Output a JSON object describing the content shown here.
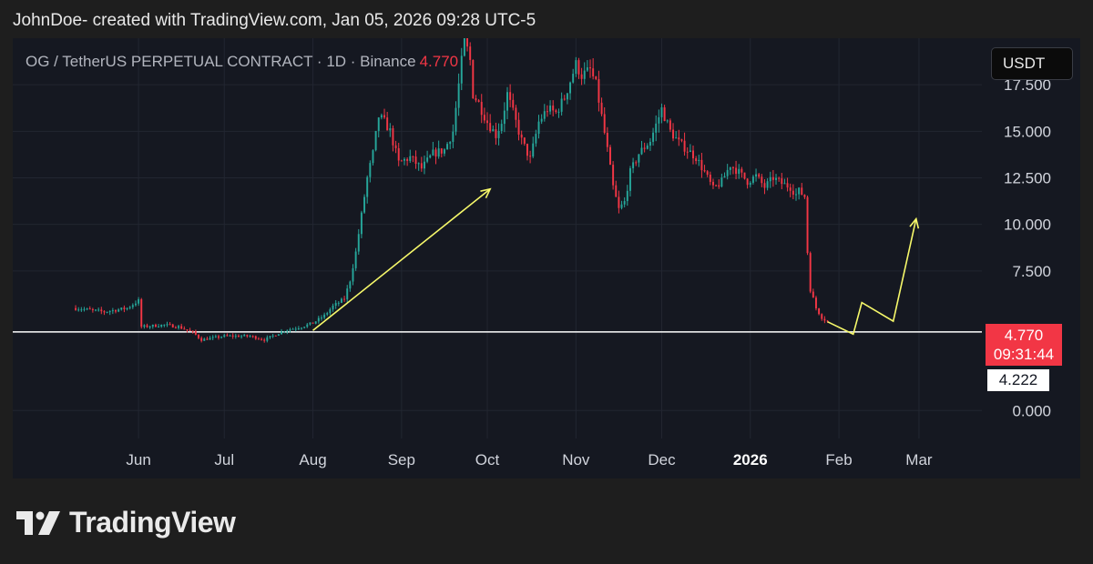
{
  "header": {
    "text": "JohnDoe- created with TradingView.com, Jan 05, 2026 09:28 UTC-5"
  },
  "symbol": {
    "title": "OG / TetherUS PERPETUAL CONTRACT · 1D · Binance",
    "last_price": "4.770"
  },
  "currency_button": "USDT",
  "price_tag": {
    "price": "4.770",
    "countdown": "09:31:44"
  },
  "level_tag": "4.222",
  "footer": {
    "brand": "TradingView"
  },
  "colors": {
    "up": "#26a69a",
    "down": "#f23645",
    "annotation": "#f6f86a",
    "level_line": "#ffffff"
  },
  "chart_data": {
    "type": "candlestick",
    "ylim": [
      -1.5,
      20.0
    ],
    "y_ticks": [
      {
        "value": 17.5,
        "label": "17.500"
      },
      {
        "value": 15.0,
        "label": "15.000"
      },
      {
        "value": 12.5,
        "label": "12.500"
      },
      {
        "value": 10.0,
        "label": "10.000"
      },
      {
        "value": 7.5,
        "label": "7.500"
      },
      {
        "value": 0.0,
        "label": "0.000"
      }
    ],
    "x_ticks": [
      {
        "date": "2025-06-01",
        "label": "Jun",
        "bold": false
      },
      {
        "date": "2025-07-01",
        "label": "Jul",
        "bold": false
      },
      {
        "date": "2025-08-01",
        "label": "Aug",
        "bold": false
      },
      {
        "date": "2025-09-01",
        "label": "Sep",
        "bold": false
      },
      {
        "date": "2025-10-01",
        "label": "Oct",
        "bold": false
      },
      {
        "date": "2025-11-01",
        "label": "Nov",
        "bold": false
      },
      {
        "date": "2025-12-01",
        "label": "Dec",
        "bold": false
      },
      {
        "date": "2026-01-01",
        "label": "2026",
        "bold": true
      },
      {
        "date": "2026-02-01",
        "label": "Feb",
        "bold": false
      },
      {
        "date": "2026-03-01",
        "label": "Mar",
        "bold": false
      }
    ],
    "x_domain": [
      "2025-04-18",
      "2026-03-23"
    ],
    "horizontal_level": 4.222,
    "price_path": [
      [
        "2025-05-10",
        5.5
      ],
      [
        "2025-05-20",
        5.3
      ],
      [
        "2025-05-28",
        5.5
      ],
      [
        "2025-06-01",
        5.9
      ],
      [
        "2025-06-02",
        4.5
      ],
      [
        "2025-06-10",
        4.6
      ],
      [
        "2025-06-15",
        4.5
      ],
      [
        "2025-06-20",
        4.2
      ],
      [
        "2025-06-23",
        3.8
      ],
      [
        "2025-07-01",
        4.0
      ],
      [
        "2025-07-10",
        4.0
      ],
      [
        "2025-07-15",
        3.8
      ],
      [
        "2025-07-22",
        4.3
      ],
      [
        "2025-07-28",
        4.5
      ],
      [
        "2025-08-01",
        4.7
      ],
      [
        "2025-08-05",
        5.1
      ],
      [
        "2025-08-08",
        5.6
      ],
      [
        "2025-08-12",
        6.0
      ],
      [
        "2025-08-14",
        7.0
      ],
      [
        "2025-08-16",
        8.5
      ],
      [
        "2025-08-18",
        10.5
      ],
      [
        "2025-08-20",
        12.5
      ],
      [
        "2025-08-22",
        13.8
      ],
      [
        "2025-08-24",
        15.8
      ],
      [
        "2025-08-26",
        15.5
      ],
      [
        "2025-08-28",
        15.0
      ],
      [
        "2025-08-31",
        13.3
      ],
      [
        "2025-09-04",
        13.6
      ],
      [
        "2025-09-08",
        13.0
      ],
      [
        "2025-09-12",
        13.8
      ],
      [
        "2025-09-16",
        14.0
      ],
      [
        "2025-09-19",
        15.0
      ],
      [
        "2025-09-21",
        17.5
      ],
      [
        "2025-09-23",
        20.0
      ],
      [
        "2025-09-25",
        18.8
      ],
      [
        "2025-09-26",
        17.0
      ],
      [
        "2025-09-28",
        16.5
      ],
      [
        "2025-10-01",
        15.5
      ],
      [
        "2025-10-04",
        14.8
      ],
      [
        "2025-10-06",
        15.5
      ],
      [
        "2025-10-08",
        17.0
      ],
      [
        "2025-10-10",
        16.0
      ],
      [
        "2025-10-13",
        14.5
      ],
      [
        "2025-10-16",
        13.5
      ],
      [
        "2025-10-19",
        15.5
      ],
      [
        "2025-10-22",
        16.2
      ],
      [
        "2025-10-25",
        16.0
      ],
      [
        "2025-10-28",
        16.8
      ],
      [
        "2025-11-01",
        18.6
      ],
      [
        "2025-11-03",
        18.0
      ],
      [
        "2025-11-06",
        18.3
      ],
      [
        "2025-11-08",
        17.5
      ],
      [
        "2025-11-10",
        15.8
      ],
      [
        "2025-11-12",
        14.0
      ],
      [
        "2025-11-14",
        12.0
      ],
      [
        "2025-11-16",
        10.8
      ],
      [
        "2025-11-18",
        11.2
      ],
      [
        "2025-11-20",
        12.8
      ],
      [
        "2025-11-23",
        13.8
      ],
      [
        "2025-11-27",
        14.5
      ],
      [
        "2025-12-01",
        16.2
      ],
      [
        "2025-12-04",
        15.0
      ],
      [
        "2025-12-07",
        14.4
      ],
      [
        "2025-12-10",
        14.0
      ],
      [
        "2025-12-13",
        13.6
      ],
      [
        "2025-12-16",
        12.8
      ],
      [
        "2025-12-19",
        11.9
      ],
      [
        "2025-12-22",
        12.3
      ],
      [
        "2025-12-25",
        13.2
      ],
      [
        "2025-12-28",
        12.8
      ],
      [
        "2025-12-31",
        12.3
      ],
      [
        "2026-01-03",
        12.6
      ],
      [
        "2026-01-06",
        12.0
      ],
      [
        "2026-01-09",
        12.5
      ],
      [
        "2026-01-12",
        12.2
      ],
      [
        "2026-01-15",
        12.0
      ],
      [
        "2026-01-17",
        11.6
      ],
      [
        "2026-01-18",
        11.8
      ],
      [
        "2026-01-20",
        11.5
      ],
      [
        "2026-01-21",
        8.5
      ],
      [
        "2026-01-22",
        6.5
      ],
      [
        "2026-01-24",
        5.5
      ],
      [
        "2026-01-26",
        5.0
      ],
      [
        "2026-01-28",
        4.77
      ]
    ],
    "annotation_arrow_up": [
      [
        "2025-08-01",
        4.3
      ],
      [
        "2025-10-02",
        11.9
      ]
    ],
    "projection_path": [
      [
        "2026-01-28",
        4.77
      ],
      [
        "2026-02-06",
        4.1
      ],
      [
        "2026-02-09",
        5.8
      ],
      [
        "2026-02-20",
        4.8
      ],
      [
        "2026-02-28",
        10.3
      ]
    ]
  }
}
